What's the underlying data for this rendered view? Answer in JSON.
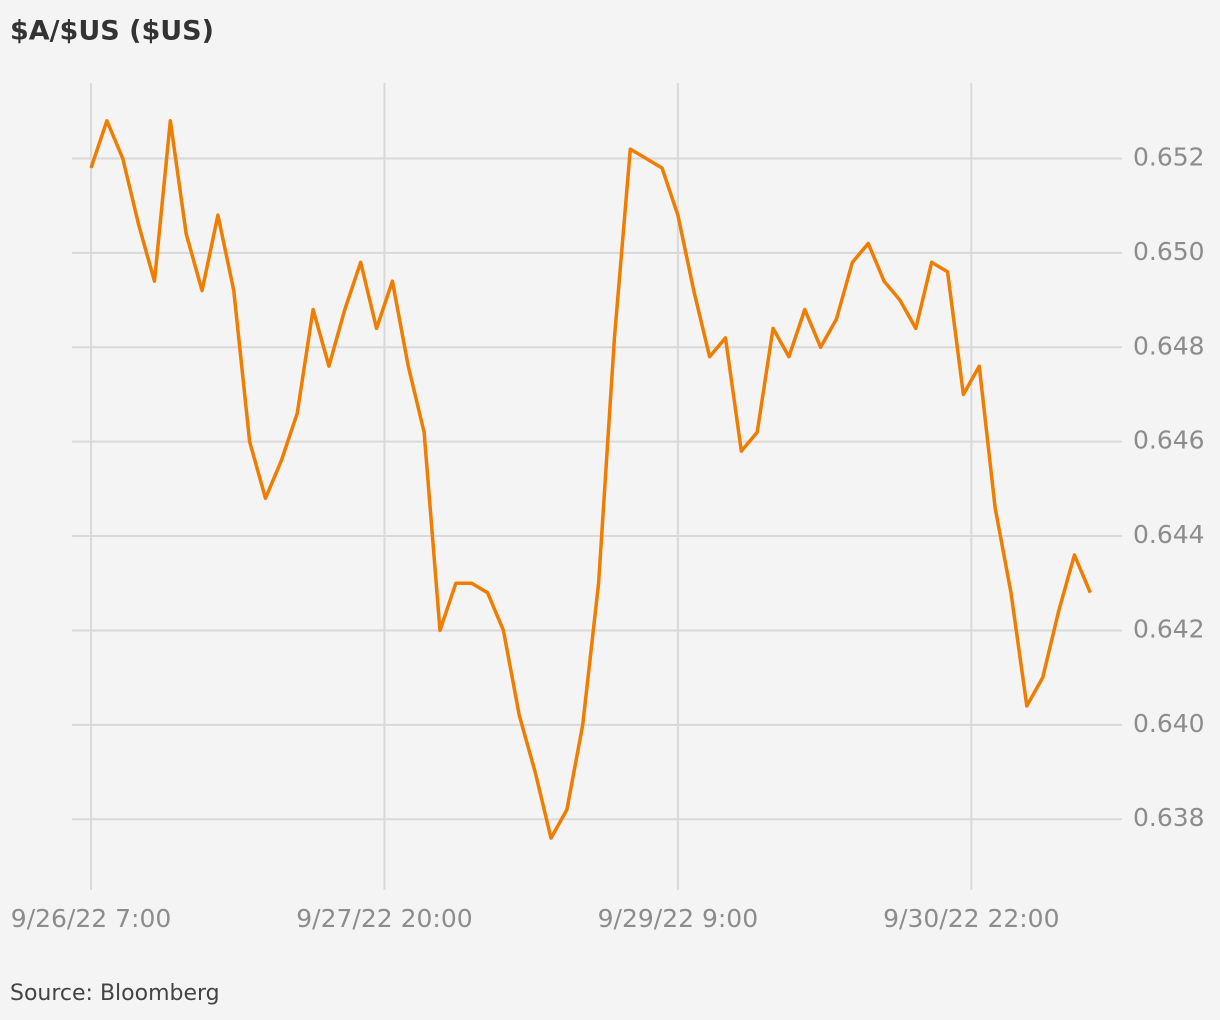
{
  "chart_data": {
    "type": "line",
    "title": "$A/$US ($US)",
    "source": "Source: Bloomberg",
    "x": [
      "2022-09-26T07:00",
      "2022-09-26T09:00",
      "2022-09-26T11:00",
      "2022-09-26T13:00",
      "2022-09-26T15:00",
      "2022-09-26T17:00",
      "2022-09-26T19:00",
      "2022-09-26T21:00",
      "2022-09-26T23:00",
      "2022-09-27T01:00",
      "2022-09-27T03:00",
      "2022-09-27T05:00",
      "2022-09-27T07:00",
      "2022-09-27T09:00",
      "2022-09-27T11:00",
      "2022-09-27T13:00",
      "2022-09-27T15:00",
      "2022-09-27T17:00",
      "2022-09-27T19:00",
      "2022-09-27T21:00",
      "2022-09-27T23:00",
      "2022-09-28T01:00",
      "2022-09-28T03:00",
      "2022-09-28T05:00",
      "2022-09-28T07:00",
      "2022-09-28T09:00",
      "2022-09-28T11:00",
      "2022-09-28T13:00",
      "2022-09-28T15:00",
      "2022-09-28T17:00",
      "2022-09-28T19:00",
      "2022-09-28T21:00",
      "2022-09-28T23:00",
      "2022-09-29T01:00",
      "2022-09-29T03:00",
      "2022-09-29T05:00",
      "2022-09-29T07:00",
      "2022-09-29T09:00",
      "2022-09-29T11:00",
      "2022-09-29T13:00",
      "2022-09-29T15:00",
      "2022-09-29T17:00",
      "2022-09-29T19:00",
      "2022-09-29T21:00",
      "2022-09-29T23:00",
      "2022-09-30T01:00",
      "2022-09-30T03:00",
      "2022-09-30T05:00",
      "2022-09-30T07:00",
      "2022-09-30T09:00",
      "2022-09-30T11:00",
      "2022-09-30T13:00",
      "2022-09-30T15:00",
      "2022-09-30T17:00",
      "2022-09-30T19:00",
      "2022-09-30T21:00",
      "2022-09-30T23:00",
      "2022-10-01T01:00",
      "2022-10-01T03:00",
      "2022-10-01T05:00",
      "2022-10-01T07:00",
      "2022-10-01T09:00",
      "2022-10-01T11:00",
      "2022-10-01T13:00"
    ],
    "series": [
      {
        "name": "$A/$US",
        "color": "#f07d00",
        "values": [
          0.6518,
          0.6528,
          0.652,
          0.6506,
          0.6494,
          0.6528,
          0.6504,
          0.6492,
          0.6508,
          0.6492,
          0.646,
          0.6448,
          0.6456,
          0.6466,
          0.6488,
          0.6476,
          0.6488,
          0.6498,
          0.6484,
          0.6494,
          0.6476,
          0.6462,
          0.642,
          0.643,
          0.643,
          0.6428,
          0.642,
          0.6402,
          0.639,
          0.6376,
          0.6382,
          0.64,
          0.643,
          0.6482,
          0.6522,
          0.652,
          0.6518,
          0.6508,
          0.6492,
          0.6478,
          0.6482,
          0.6458,
          0.6462,
          0.6484,
          0.6478,
          0.6488,
          0.648,
          0.6486,
          0.6498,
          0.6502,
          0.6494,
          0.649,
          0.6484,
          0.6498,
          0.6496,
          0.647,
          0.6476,
          0.6446,
          0.6428,
          0.6404,
          0.641,
          0.6424,
          0.6436,
          0.6428
        ]
      }
    ],
    "xlim": [
      "2022-09-26T04:36",
      "2022-10-01T17:00"
    ],
    "ylim": [
      0.6365,
      0.6536
    ],
    "yticks": [
      {
        "value": 0.638,
        "label": "0.638"
      },
      {
        "value": 0.64,
        "label": "0.640"
      },
      {
        "value": 0.642,
        "label": "0.642"
      },
      {
        "value": 0.644,
        "label": "0.644"
      },
      {
        "value": 0.646,
        "label": "0.646"
      },
      {
        "value": 0.648,
        "label": "0.648"
      },
      {
        "value": 0.65,
        "label": "0.650"
      },
      {
        "value": 0.652,
        "label": "0.652"
      }
    ],
    "xticks": [
      {
        "value": "2022-09-26T07:00",
        "label": "9/26/22 7:00"
      },
      {
        "value": "2022-09-27T20:00",
        "label": "9/27/22 20:00"
      },
      {
        "value": "2022-09-29T09:00",
        "label": "9/29/22 9:00"
      },
      {
        "value": "2022-09-30T22:00",
        "label": "9/30/22 22:00"
      }
    ],
    "grid": true
  }
}
